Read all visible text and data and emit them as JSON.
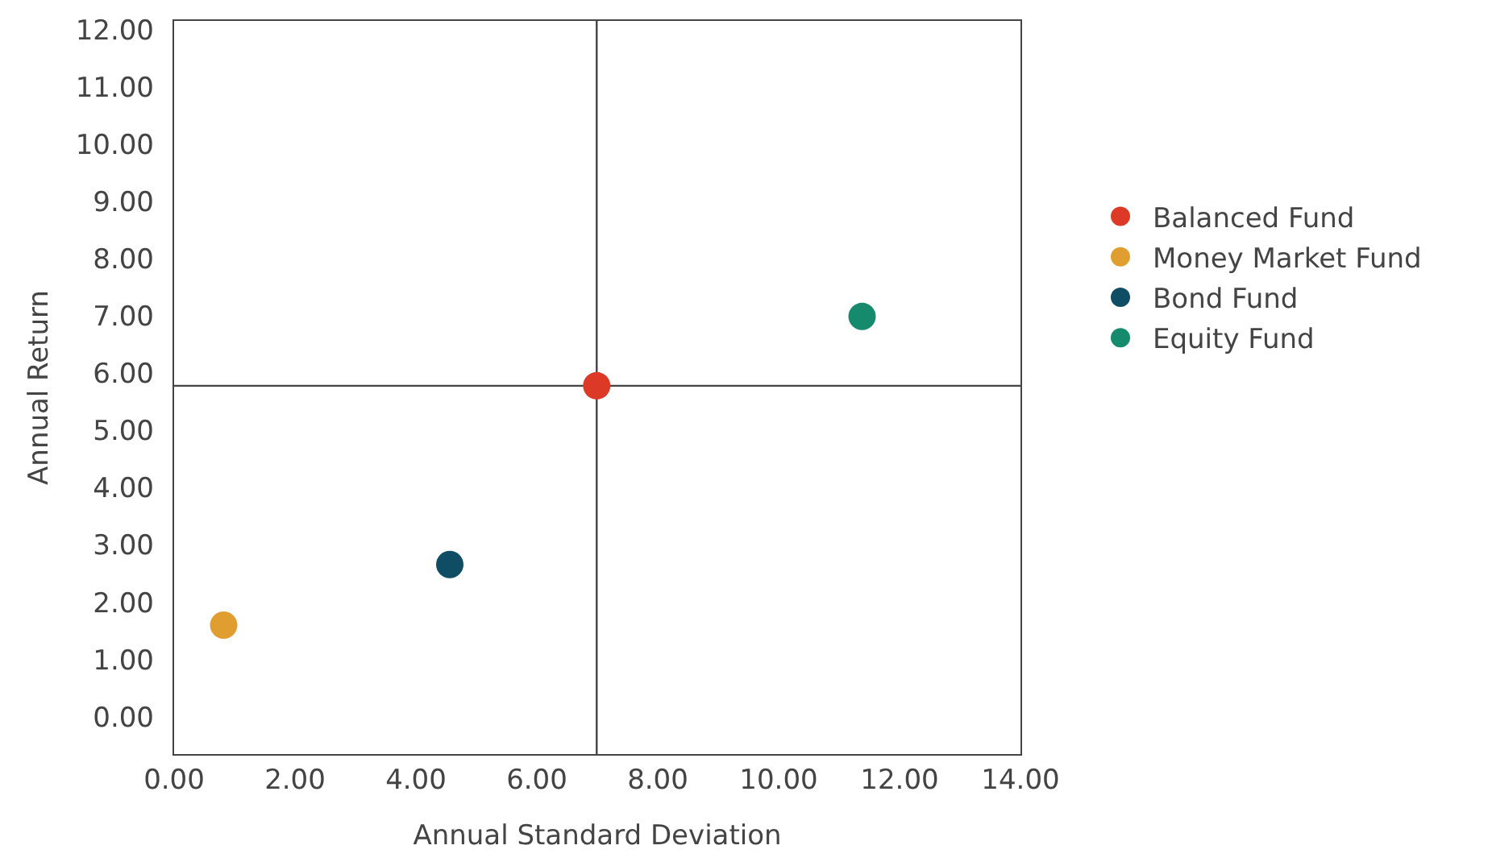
{
  "chart_data": {
    "type": "scatter",
    "xlabel": "Annual Standard Deviation",
    "ylabel": "Annual Return",
    "series": [
      {
        "name": "Balanced Fund",
        "color": "#dc3a26",
        "x": [
          6.99
        ],
        "values": [
          5.78
        ]
      },
      {
        "name": "Money Market Fund",
        "color": "#e09e30",
        "x": [
          0.82
        ],
        "values": [
          1.6
        ]
      },
      {
        "name": "Bond Fund",
        "color": "#0e4d64",
        "x": [
          4.56
        ],
        "values": [
          2.66
        ]
      },
      {
        "name": "Equity Fund",
        "color": "#168a6c",
        "x": [
          11.38
        ],
        "values": [
          6.99
        ]
      }
    ],
    "xlim": [
      0,
      14
    ],
    "ylim": [
      -0.65,
      12.15
    ],
    "xticks": [
      {
        "value": 0,
        "label": "0.00"
      },
      {
        "value": 2,
        "label": "2.00"
      },
      {
        "value": 4,
        "label": "4.00"
      },
      {
        "value": 6,
        "label": "6.00"
      },
      {
        "value": 8,
        "label": "8.00"
      },
      {
        "value": 10,
        "label": "10.00"
      },
      {
        "value": 12,
        "label": "12.00"
      },
      {
        "value": 14,
        "label": "14.00"
      }
    ],
    "yticks": [
      {
        "value": 0,
        "label": "0.00"
      },
      {
        "value": 1,
        "label": "1.00"
      },
      {
        "value": 2,
        "label": "2.00"
      },
      {
        "value": 3,
        "label": "3.00"
      },
      {
        "value": 4,
        "label": "4.00"
      },
      {
        "value": 5,
        "label": "5.00"
      },
      {
        "value": 6,
        "label": "6.00"
      },
      {
        "value": 7,
        "label": "7.00"
      },
      {
        "value": 8,
        "label": "8.00"
      },
      {
        "value": 9,
        "label": "9.00"
      },
      {
        "value": 10,
        "label": "10.00"
      },
      {
        "value": 11,
        "label": "11.00"
      },
      {
        "value": 12,
        "label": "12.00"
      }
    ],
    "ref_lines": [
      {
        "axis": "x",
        "value": 6.99,
        "color": "#444444"
      },
      {
        "axis": "y",
        "value": 5.78,
        "color": "#444444"
      }
    ],
    "grid": false,
    "legend": "right",
    "marker": "circle"
  }
}
